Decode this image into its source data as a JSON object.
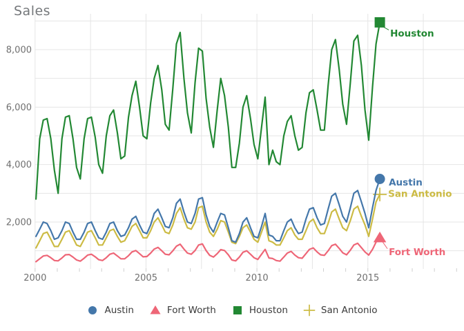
{
  "title": "Sales",
  "theme": {
    "background": "#ffffff",
    "grid_color": "#e5e5e5",
    "minor_tick_color": "#cfcfcf",
    "tick_label_color": "#6f6f6f",
    "title_color": "#75787b",
    "legend_text_color": "#3a3a3a"
  },
  "chart_data": {
    "type": "line",
    "title": "Sales",
    "xlabel": "",
    "ylabel": "Sales",
    "x_unit": "year (monthly housing sales samples)",
    "x_range": [
      2000,
      2019.3
    ],
    "y_range": [
      0,
      9400
    ],
    "grid": "on",
    "legend_position": "bottom-center",
    "x_tick_labels": [
      {
        "value": 2000,
        "label": "2000"
      },
      {
        "value": 2005,
        "label": "2005"
      },
      {
        "value": 2010,
        "label": "2010"
      },
      {
        "value": 2015,
        "label": "2015"
      }
    ],
    "y_tick_labels": [
      {
        "value": 2000,
        "label": "2,000"
      },
      {
        "value": 4000,
        "label": "4,000"
      },
      {
        "value": 6000,
        "label": "6,000"
      },
      {
        "value": 8000,
        "label": "8,000"
      }
    ],
    "x_gridlines": [
      2000,
      2002.5,
      2005,
      2007.5,
      2010,
      2012.5,
      2015,
      2017.5
    ],
    "y_gridlines": [
      1000,
      2000,
      3000,
      4000,
      5000,
      6000,
      7000,
      8000,
      9000
    ],
    "x_minor_ticks": [
      2000,
      2001,
      2002,
      2003,
      2004,
      2005,
      2006,
      2007,
      2008,
      2009,
      2010,
      2011,
      2012,
      2013,
      2014,
      2015,
      2016,
      2017,
      2018,
      2019
    ],
    "x": [
      2000.04,
      2000.21,
      2000.37,
      2000.54,
      2000.71,
      2000.87,
      2001.04,
      2001.21,
      2001.37,
      2001.54,
      2001.71,
      2001.87,
      2002.04,
      2002.21,
      2002.37,
      2002.54,
      2002.71,
      2002.87,
      2003.04,
      2003.21,
      2003.37,
      2003.54,
      2003.71,
      2003.87,
      2004.04,
      2004.21,
      2004.37,
      2004.54,
      2004.71,
      2004.87,
      2005.04,
      2005.21,
      2005.37,
      2005.54,
      2005.71,
      2005.87,
      2006.04,
      2006.21,
      2006.37,
      2006.54,
      2006.71,
      2006.87,
      2007.04,
      2007.21,
      2007.37,
      2007.54,
      2007.71,
      2007.87,
      2008.04,
      2008.21,
      2008.37,
      2008.54,
      2008.71,
      2008.87,
      2009.04,
      2009.21,
      2009.37,
      2009.54,
      2009.71,
      2009.87,
      2010.04,
      2010.21,
      2010.37,
      2010.54,
      2010.71,
      2010.87,
      2011.04,
      2011.21,
      2011.37,
      2011.54,
      2011.71,
      2011.87,
      2012.04,
      2012.21,
      2012.37,
      2012.54,
      2012.71,
      2012.87,
      2013.04,
      2013.21,
      2013.37,
      2013.54,
      2013.71,
      2013.87,
      2014.04,
      2014.21,
      2014.37,
      2014.54,
      2014.71,
      2014.87,
      2015.04,
      2015.21,
      2015.37,
      2015.54
    ],
    "series": [
      {
        "name": "Austin",
        "color": "#4477AA",
        "marker": "circle",
        "end_marker_size": 15,
        "end_label": {
          "text": "Austin",
          "dx": 13,
          "dy": 5,
          "connector": false
        },
        "values": [
          1500,
          1750,
          2000,
          1950,
          1700,
          1400,
          1450,
          1700,
          2000,
          1950,
          1650,
          1400,
          1400,
          1650,
          1950,
          2000,
          1700,
          1450,
          1400,
          1650,
          1950,
          2000,
          1700,
          1500,
          1550,
          1800,
          2100,
          2200,
          1900,
          1650,
          1600,
          1900,
          2300,
          2450,
          2150,
          1850,
          1800,
          2150,
          2650,
          2800,
          2350,
          2000,
          1950,
          2300,
          2800,
          2850,
          2250,
          1850,
          1650,
          2000,
          2300,
          2250,
          1800,
          1350,
          1300,
          1600,
          2000,
          2150,
          1800,
          1500,
          1450,
          1850,
          2300,
          1550,
          1500,
          1350,
          1350,
          1700,
          2000,
          2100,
          1800,
          1600,
          1650,
          2100,
          2450,
          2500,
          2150,
          1900,
          1950,
          2450,
          2900,
          3000,
          2600,
          2200,
          2000,
          2500,
          3000,
          3100,
          2700,
          2300,
          1800,
          2500,
          3100,
          3500
        ]
      },
      {
        "name": "Fort Worth",
        "color": "#EE6677",
        "marker": "triangle",
        "end_marker_size": 16,
        "end_label": {
          "text": "Fort Worth",
          "dx": 13,
          "dy": 21,
          "connector": true
        },
        "values": [
          620,
          720,
          820,
          840,
          760,
          660,
          650,
          750,
          860,
          870,
          780,
          680,
          640,
          740,
          850,
          880,
          790,
          690,
          660,
          760,
          880,
          920,
          820,
          720,
          720,
          830,
          960,
          1010,
          900,
          790,
          800,
          920,
          1060,
          1120,
          1000,
          880,
          860,
          1000,
          1160,
          1230,
          1060,
          920,
          880,
          1010,
          1200,
          1240,
          1010,
          840,
          780,
          900,
          1040,
          1010,
          860,
          680,
          650,
          780,
          950,
          1000,
          880,
          760,
          700,
          880,
          1050,
          750,
          730,
          660,
          640,
          780,
          920,
          980,
          850,
          760,
          740,
          900,
          1050,
          1100,
          960,
          860,
          840,
          1000,
          1180,
          1230,
          1080,
          930,
          860,
          1020,
          1200,
          1260,
          1110,
          960,
          850,
          1050,
          1300,
          1455
        ]
      },
      {
        "name": "Houston",
        "color": "#228833",
        "marker": "square",
        "end_marker_size": 15,
        "end_label": {
          "text": "Houston",
          "dx": 15,
          "dy": 16,
          "connector": true
        },
        "values": [
          2800,
          4900,
          5550,
          5600,
          4900,
          3800,
          3000,
          4900,
          5650,
          5700,
          4900,
          3900,
          3500,
          4900,
          5600,
          5650,
          4950,
          4000,
          3700,
          5000,
          5700,
          5900,
          5100,
          4200,
          4300,
          5650,
          6400,
          6900,
          6000,
          5000,
          4900,
          6150,
          7000,
          7450,
          6600,
          5400,
          5200,
          6650,
          8200,
          8600,
          7000,
          5800,
          5100,
          6850,
          8050,
          7950,
          6300,
          5300,
          4600,
          5900,
          7000,
          6400,
          5300,
          3900,
          3900,
          4750,
          6000,
          6400,
          5600,
          4700,
          4200,
          5300,
          6350,
          4000,
          4500,
          4100,
          4000,
          5000,
          5500,
          5700,
          5000,
          4500,
          4600,
          5800,
          6500,
          6600,
          5900,
          5200,
          5200,
          6750,
          8000,
          8350,
          7300,
          6100,
          5400,
          6850,
          8300,
          8500,
          7450,
          5900,
          4850,
          6700,
          8200,
          8950
        ]
      },
      {
        "name": "San Antonio",
        "color": "#CCBB44",
        "marker": "plus",
        "end_marker_size": 18,
        "end_label": {
          "text": "San Antonio",
          "dx": 12,
          "dy": -1,
          "connector": false
        },
        "values": [
          1100,
          1350,
          1600,
          1650,
          1400,
          1150,
          1150,
          1400,
          1650,
          1700,
          1450,
          1200,
          1150,
          1400,
          1650,
          1700,
          1450,
          1200,
          1200,
          1450,
          1700,
          1750,
          1500,
          1300,
          1350,
          1600,
          1850,
          1950,
          1700,
          1450,
          1450,
          1700,
          2000,
          2150,
          1900,
          1650,
          1600,
          1900,
          2300,
          2500,
          2100,
          1800,
          1750,
          2000,
          2500,
          2550,
          2000,
          1650,
          1500,
          1750,
          2050,
          2000,
          1650,
          1300,
          1250,
          1500,
          1800,
          1900,
          1650,
          1400,
          1300,
          1650,
          2000,
          1350,
          1300,
          1200,
          1200,
          1450,
          1700,
          1800,
          1550,
          1400,
          1400,
          1700,
          2000,
          2100,
          1800,
          1600,
          1600,
          1950,
          2350,
          2450,
          2100,
          1800,
          1700,
          2050,
          2450,
          2550,
          2200,
          1900,
          1500,
          2100,
          2700,
          2960
        ]
      }
    ]
  },
  "legend": {
    "items": [
      {
        "label": "Austin",
        "marker": "circle",
        "color": "#4477AA"
      },
      {
        "label": "Fort Worth",
        "marker": "triangle",
        "color": "#EE6677"
      },
      {
        "label": "Houston",
        "marker": "square",
        "color": "#228833"
      },
      {
        "label": "San Antonio",
        "marker": "plus",
        "color": "#CCBB44"
      }
    ]
  }
}
